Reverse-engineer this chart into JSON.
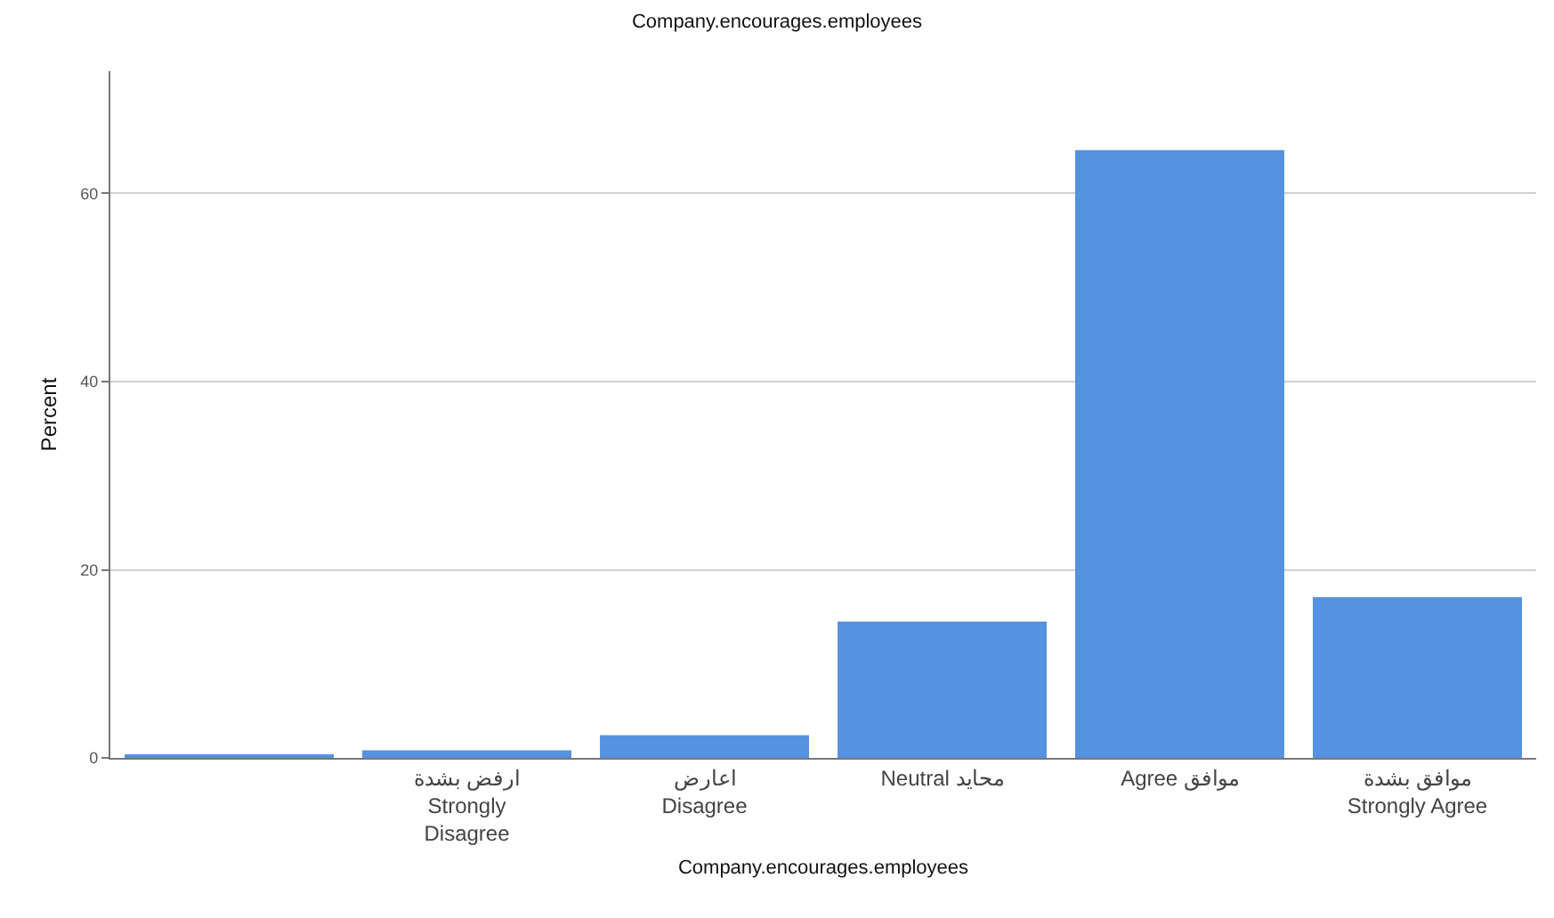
{
  "chart_data": {
    "type": "bar",
    "title": "Company.encourages.employees",
    "xlabel": "Company.encourages.employees",
    "ylabel": "Percent",
    "categories": [
      null,
      "ارفض بشدة\nStrongly\nDisagree",
      "اعارض\nDisagree",
      "Neutral محايد",
      "Agree موافق",
      "موافق بشدة\nStrongly Agree"
    ],
    "values": [
      0.3,
      0.8,
      2.4,
      14.5,
      64.6,
      17.1
    ],
    "color": "#5592e0",
    "ylim": [
      0,
      73
    ],
    "yticks": [
      0,
      20,
      40,
      60
    ],
    "grid": "y"
  }
}
